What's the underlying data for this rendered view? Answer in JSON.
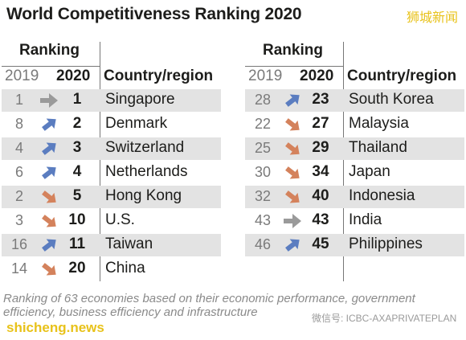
{
  "title": "World Competitiveness Ranking 2020",
  "watermark_top": "狮城新闻",
  "headers": {
    "ranking": "Ranking",
    "y2019": "2019",
    "y2020": "2020",
    "country": "Country/region"
  },
  "colors": {
    "up": "#5b7dc0",
    "down": "#d4825c",
    "same": "#9a9a9a",
    "shade": "#e3e3e3"
  },
  "chart_data": {
    "type": "table",
    "title": "World Competitiveness Ranking 2020",
    "columns": [
      "2019",
      "2020",
      "Country/region"
    ],
    "left": [
      {
        "r2019": "1",
        "r2020": "1",
        "country": "Singapore",
        "move": "same"
      },
      {
        "r2019": "8",
        "r2020": "2",
        "country": "Denmark",
        "move": "up"
      },
      {
        "r2019": "4",
        "r2020": "3",
        "country": "Switzerland",
        "move": "up"
      },
      {
        "r2019": "6",
        "r2020": "4",
        "country": "Netherlands",
        "move": "up"
      },
      {
        "r2019": "2",
        "r2020": "5",
        "country": "Hong Kong",
        "move": "down"
      },
      {
        "r2019": "3",
        "r2020": "10",
        "country": "U.S.",
        "move": "down"
      },
      {
        "r2019": "16",
        "r2020": "11",
        "country": "Taiwan",
        "move": "up"
      },
      {
        "r2019": "14",
        "r2020": "20",
        "country": "China",
        "move": "down"
      }
    ],
    "right": [
      {
        "r2019": "28",
        "r2020": "23",
        "country": "South Korea",
        "move": "up"
      },
      {
        "r2019": "22",
        "r2020": "27",
        "country": "Malaysia",
        "move": "down"
      },
      {
        "r2019": "25",
        "r2020": "29",
        "country": "Thailand",
        "move": "down"
      },
      {
        "r2019": "30",
        "r2020": "34",
        "country": "Japan",
        "move": "down"
      },
      {
        "r2019": "32",
        "r2020": "40",
        "country": "Indonesia",
        "move": "down"
      },
      {
        "r2019": "43",
        "r2020": "43",
        "country": "India",
        "move": "same"
      },
      {
        "r2019": "46",
        "r2020": "45",
        "country": "Philippines",
        "move": "up"
      }
    ]
  },
  "note": "Ranking of 63 economies based on their economic performance, government efficiency, business efficiency and infrastructure",
  "watermark_bottom": "shicheng.news",
  "watermark_wechat": "微信号: ICBC-AXAPRIVATEPLAN"
}
